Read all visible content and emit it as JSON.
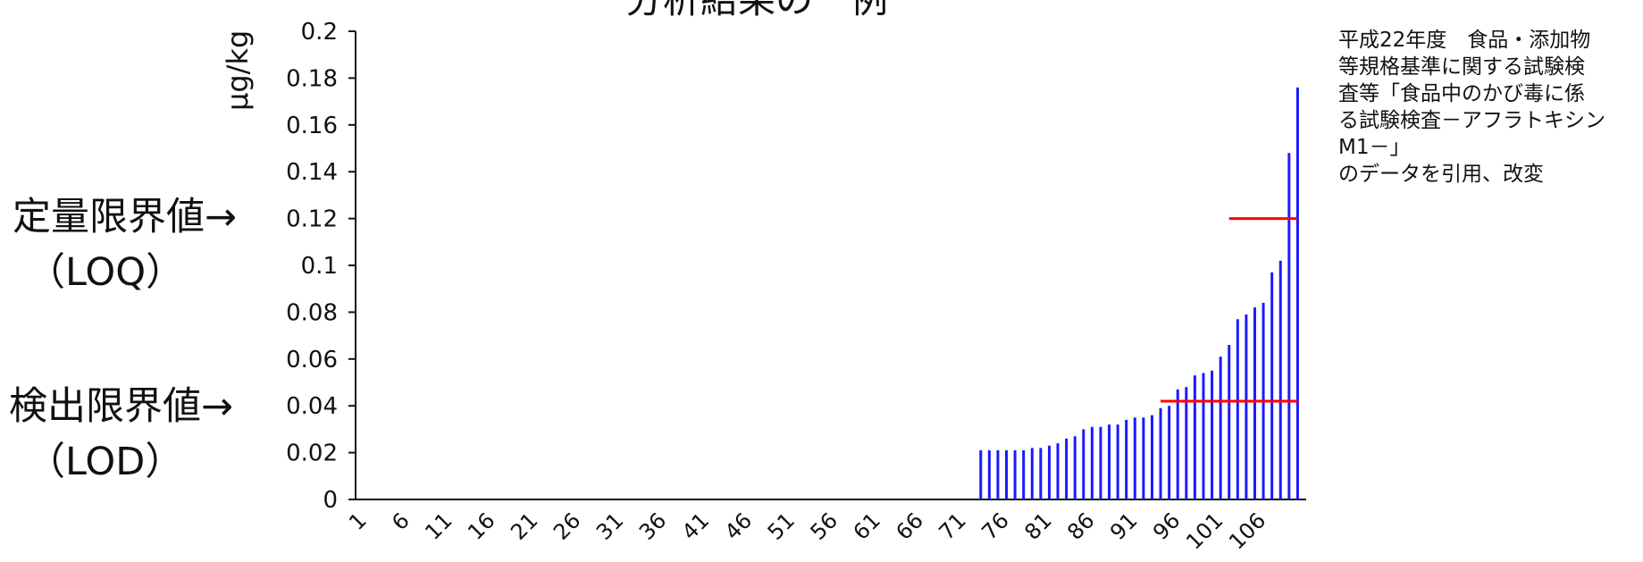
{
  "chart_data": {
    "type": "bar",
    "title": "分析結果の一例",
    "ylabel": "µg/kg",
    "xlabel": "",
    "ylim": [
      0,
      0.2
    ],
    "yticks": [
      "0.2",
      "0.18",
      "0.16",
      "0.14",
      "0.12",
      "0.1",
      "0.08",
      "0.06",
      "0.04",
      "0.02",
      "0"
    ],
    "xticks": [
      "1",
      "6",
      "11",
      "16",
      "21",
      "26",
      "31",
      "36",
      "41",
      "46",
      "51",
      "56",
      "61",
      "66",
      "71",
      "76",
      "81",
      "86",
      "91",
      "96",
      "101",
      "106"
    ],
    "x_first": 1,
    "values": [
      0,
      0,
      0,
      0,
      0,
      0,
      0,
      0,
      0,
      0,
      0,
      0,
      0,
      0,
      0,
      0,
      0,
      0,
      0,
      0,
      0,
      0,
      0,
      0,
      0,
      0,
      0,
      0,
      0,
      0,
      0,
      0,
      0,
      0,
      0,
      0,
      0,
      0,
      0,
      0,
      0,
      0,
      0,
      0,
      0,
      0,
      0,
      0,
      0,
      0,
      0,
      0,
      0,
      0,
      0,
      0,
      0,
      0,
      0,
      0,
      0,
      0,
      0,
      0,
      0,
      0,
      0,
      0,
      0,
      0,
      0,
      0,
      0.021,
      0.021,
      0.021,
      0.021,
      0.021,
      0.021,
      0.022,
      0.022,
      0.023,
      0.024,
      0.026,
      0.027,
      0.03,
      0.031,
      0.031,
      0.032,
      0.032,
      0.034,
      0.035,
      0.035,
      0.036,
      0.039,
      0.04,
      0.047,
      0.048,
      0.053,
      0.054,
      0.055,
      0.061,
      0.066,
      0.077,
      0.079,
      0.082,
      0.084,
      0.097,
      0.102,
      0.148,
      0.176
    ],
    "reference_lines": [
      {
        "name": "LOQ",
        "value": 0.12,
        "x_start": 102,
        "x_end": 110
      },
      {
        "name": "LOD",
        "value": 0.042,
        "x_start": 94,
        "x_end": 110
      }
    ],
    "bar_color": "#1a1aff",
    "reference_color": "#ff0000",
    "grid": false
  },
  "annotations": {
    "loq_label": "定量限界値→",
    "loq_sub": "（LOQ）",
    "lod_label": "検出限界値→",
    "lod_sub": "（LOD）"
  },
  "source_note": [
    "平成22年度　食品・添加物",
    "等規格基準に関する試験検",
    "査等「食品中のかび毒に係",
    "る試験検査－アフラトキシン",
    "M1－」",
    "のデータを引用、改変"
  ]
}
